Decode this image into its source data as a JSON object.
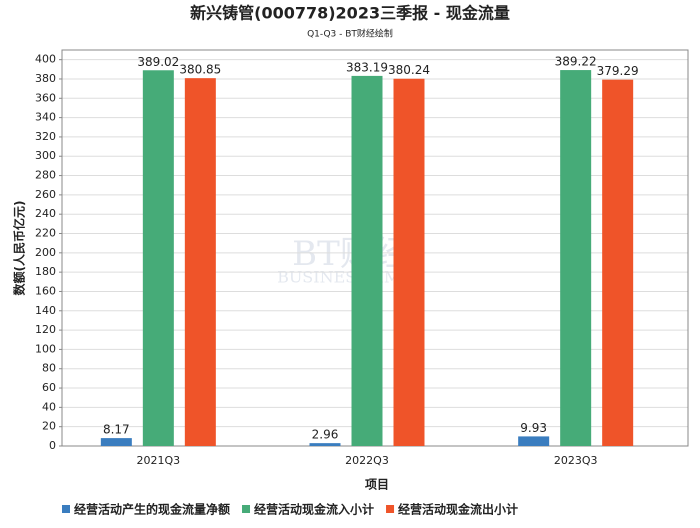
{
  "chart_data": {
    "type": "bar",
    "title": "新兴铸管(000778)2023三季报 - 现金流量",
    "subtitle": "Q1-Q3 - BT财经绘制",
    "x_label": "项目",
    "y_label": "数额(人民币亿元)",
    "watermark": [
      "BT财经",
      "BUSINESSTIMES"
    ],
    "categories": [
      "2021Q3",
      "2022Q3",
      "2023Q3"
    ],
    "series": [
      {
        "name": "经营活动产生的现金流量净额",
        "color": "#3a7dbf",
        "values": [
          8.17,
          2.96,
          9.93
        ]
      },
      {
        "name": "经营活动现金流入小计",
        "color": "#46ab78",
        "values": [
          389.02,
          383.19,
          389.22
        ]
      },
      {
        "name": "经营活动现金流出小计",
        "color": "#ef5429",
        "values": [
          380.85,
          380.24,
          379.29
        ]
      }
    ],
    "ylim": [
      0,
      410
    ],
    "yticks": [
      0,
      20,
      40,
      60,
      80,
      100,
      120,
      140,
      160,
      180,
      200,
      220,
      240,
      260,
      280,
      300,
      320,
      340,
      360,
      380,
      400
    ],
    "grid": true,
    "legend": "bottom"
  }
}
